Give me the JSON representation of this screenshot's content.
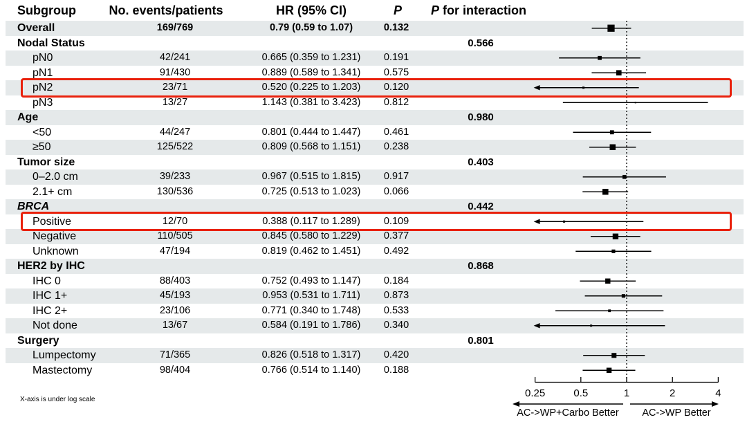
{
  "header": {
    "subgroup": "Subgroup",
    "events": "No. events/patients",
    "hr_ci": "HR (95% CI)",
    "p": "P",
    "p_interaction_p": "P",
    "p_interaction_rest": "for interaction"
  },
  "footnote": "X-axis is under log scale",
  "colors": {
    "stripe": "#e5e9ea",
    "highlight_red": "#e9210c",
    "ink": "#000000"
  },
  "chart_data": {
    "type": "scatter",
    "subtype": "forest-plot",
    "title": "",
    "x_scale": "log",
    "xlim": [
      0.25,
      4
    ],
    "reference_line": 1,
    "x_ticks": [
      0.25,
      0.5,
      1,
      2,
      4
    ],
    "x_tick_labels": [
      "0.25",
      "0.5",
      "1",
      "2",
      "4"
    ],
    "direction_labels": {
      "left": "AC->WP+Carbo Better",
      "right": "AC->WP Better"
    },
    "columns": [
      "Subgroup",
      "No. events/patients",
      "HR (95% CI)",
      "P",
      "P for interaction"
    ],
    "rows": [
      {
        "label": "Overall",
        "level": "overall",
        "events": "169/769",
        "hr_text": "0.79 (0.59 to 1.07)",
        "p": "0.132",
        "hr": 0.79,
        "lo": 0.59,
        "hi": 1.07,
        "patients": 769
      },
      {
        "label": "Nodal Status",
        "level": "group",
        "p_interaction": "0.566"
      },
      {
        "label": "pN0",
        "level": "item",
        "events": "42/241",
        "hr_text": "0.665 (0.359 to 1.231)",
        "p": "0.191",
        "hr": 0.665,
        "lo": 0.359,
        "hi": 1.231,
        "patients": 241
      },
      {
        "label": "pN1",
        "level": "item",
        "events": "91/430",
        "hr_text": "0.889 (0.589 to 1.341)",
        "p": "0.575",
        "hr": 0.889,
        "lo": 0.589,
        "hi": 1.341,
        "patients": 430
      },
      {
        "label": "pN2",
        "level": "item",
        "events": "23/71",
        "hr_text": "0.520 (0.225 to 1.203)",
        "p": "0.120",
        "hr": 0.52,
        "lo": 0.225,
        "hi": 1.203,
        "patients": 71,
        "highlighted": true
      },
      {
        "label": "pN3",
        "level": "item",
        "events": "13/27",
        "hr_text": "1.143 (0.381 to 3.423)",
        "p": "0.812",
        "hr": 1.143,
        "lo": 0.381,
        "hi": 3.423,
        "patients": 27
      },
      {
        "label": "Age",
        "level": "group",
        "p_interaction": "0.980"
      },
      {
        "label": "<50",
        "level": "item",
        "events": "44/247",
        "hr_text": "0.801 (0.444 to 1.447)",
        "p": "0.461",
        "hr": 0.801,
        "lo": 0.444,
        "hi": 1.447,
        "patients": 247
      },
      {
        "label": "≥50",
        "level": "item",
        "events": "125/522",
        "hr_text": "0.809 (0.568 to 1.151)",
        "p": "0.238",
        "hr": 0.809,
        "lo": 0.568,
        "hi": 1.151,
        "patients": 522
      },
      {
        "label": "Tumor size",
        "level": "group",
        "p_interaction": "0.403"
      },
      {
        "label": "0–2.0 cm",
        "level": "item",
        "events": "39/233",
        "hr_text": "0.967 (0.515 to 1.815)",
        "p": "0.917",
        "hr": 0.967,
        "lo": 0.515,
        "hi": 1.815,
        "patients": 233
      },
      {
        "label": "2.1+ cm",
        "level": "item",
        "events": "130/536",
        "hr_text": "0.725 (0.513 to 1.023)",
        "p": "0.066",
        "hr": 0.725,
        "lo": 0.513,
        "hi": 1.023,
        "patients": 536
      },
      {
        "label": "BRCA",
        "level": "group",
        "italic": true,
        "p_interaction": "0.442"
      },
      {
        "label": "Positive",
        "level": "item",
        "events": "12/70",
        "hr_text": "0.388 (0.117 to 1.289)",
        "p": "0.109",
        "hr": 0.388,
        "lo": 0.117,
        "hi": 1.289,
        "patients": 70,
        "highlighted": true
      },
      {
        "label": "Negative",
        "level": "item",
        "events": "110/505",
        "hr_text": "0.845 (0.580 to 1.229)",
        "p": "0.377",
        "hr": 0.845,
        "lo": 0.58,
        "hi": 1.229,
        "patients": 505
      },
      {
        "label": "Unknown",
        "level": "item",
        "events": "47/194",
        "hr_text": "0.819 (0.462 to 1.451)",
        "p": "0.492",
        "hr": 0.819,
        "lo": 0.462,
        "hi": 1.451,
        "patients": 194
      },
      {
        "label": "HER2 by IHC",
        "level": "group",
        "p_interaction": "0.868"
      },
      {
        "label": "IHC 0",
        "level": "item",
        "events": "88/403",
        "hr_text": "0.752 (0.493 to 1.147)",
        "p": "0.184",
        "hr": 0.752,
        "lo": 0.493,
        "hi": 1.147,
        "patients": 403
      },
      {
        "label": "IHC 1+",
        "level": "item",
        "events": "45/193",
        "hr_text": "0.953 (0.531 to 1.711)",
        "p": "0.873",
        "hr": 0.953,
        "lo": 0.531,
        "hi": 1.711,
        "patients": 193
      },
      {
        "label": "IHC 2+",
        "level": "item",
        "events": "23/106",
        "hr_text": "0.771 (0.340 to 1.748)",
        "p": "0.533",
        "hr": 0.771,
        "lo": 0.34,
        "hi": 1.748,
        "patients": 106
      },
      {
        "label": "Not done",
        "level": "item",
        "events": "13/67",
        "hr_text": "0.584 (0.191 to 1.786)",
        "p": "0.340",
        "hr": 0.584,
        "lo": 0.191,
        "hi": 1.786,
        "patients": 67
      },
      {
        "label": "Surgery",
        "level": "group",
        "p_interaction": "0.801"
      },
      {
        "label": "Lumpectomy",
        "level": "item",
        "events": "71/365",
        "hr_text": "0.826 (0.518 to 1.317)",
        "p": "0.420",
        "hr": 0.826,
        "lo": 0.518,
        "hi": 1.317,
        "patients": 365
      },
      {
        "label": "Mastectomy",
        "level": "item",
        "events": "98/404",
        "hr_text": "0.766 (0.514 to 1.140)",
        "p": "0.188",
        "hr": 0.766,
        "lo": 0.514,
        "hi": 1.14,
        "patients": 404
      }
    ]
  }
}
